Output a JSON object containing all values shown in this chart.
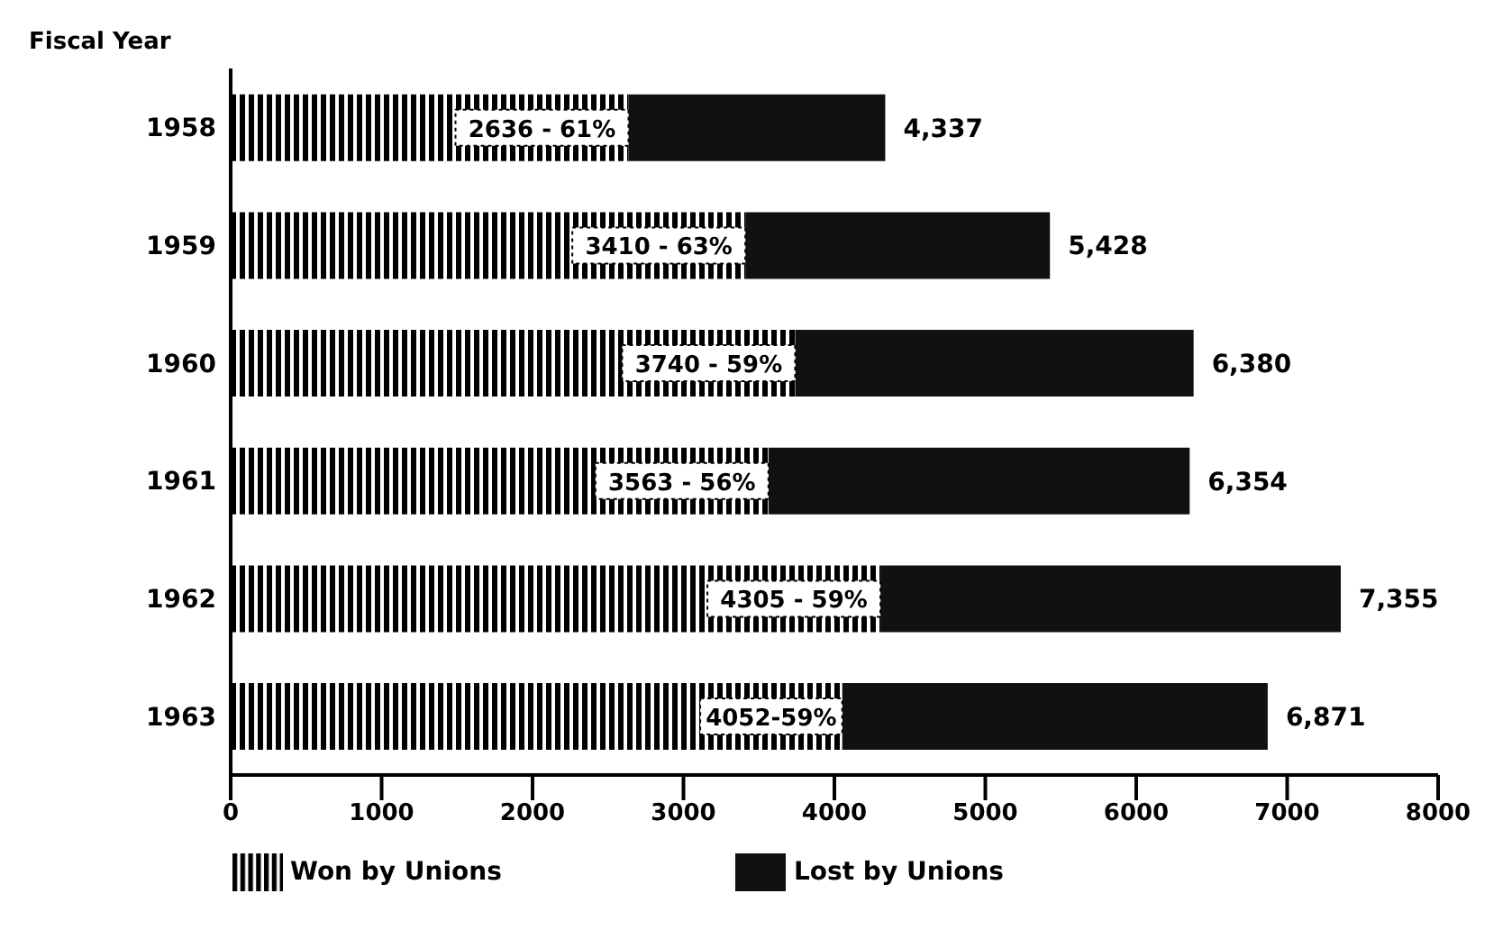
{
  "chart_data": {
    "type": "bar",
    "orientation": "horizontal",
    "stacked": true,
    "ylabel": "Fiscal Year",
    "categories": [
      "1958",
      "1959",
      "1960",
      "1961",
      "1962",
      "1963"
    ],
    "series": [
      {
        "name": "Won by Unions",
        "color": "#000000",
        "values": [
          2636,
          3410,
          3740,
          3563,
          4305,
          4052
        ],
        "value_labels": [
          "2636 - 61%",
          "3410 - 63%",
          "3740 - 59%",
          "3563 - 56%",
          "4305 - 59%",
          "4052-59%"
        ]
      },
      {
        "name": "Lost by Unions",
        "color": "#111111",
        "values": [
          1701,
          2018,
          2640,
          2791,
          3050,
          2819
        ]
      }
    ],
    "totals": [
      "4,337",
      "5,428",
      "6,380",
      "6,354",
      "7,355",
      "6,871"
    ],
    "xlim": [
      0,
      8000
    ],
    "xticks": [
      0,
      1000,
      2000,
      3000,
      4000,
      5000,
      6000,
      7000,
      8000
    ],
    "legend": "bottom"
  }
}
